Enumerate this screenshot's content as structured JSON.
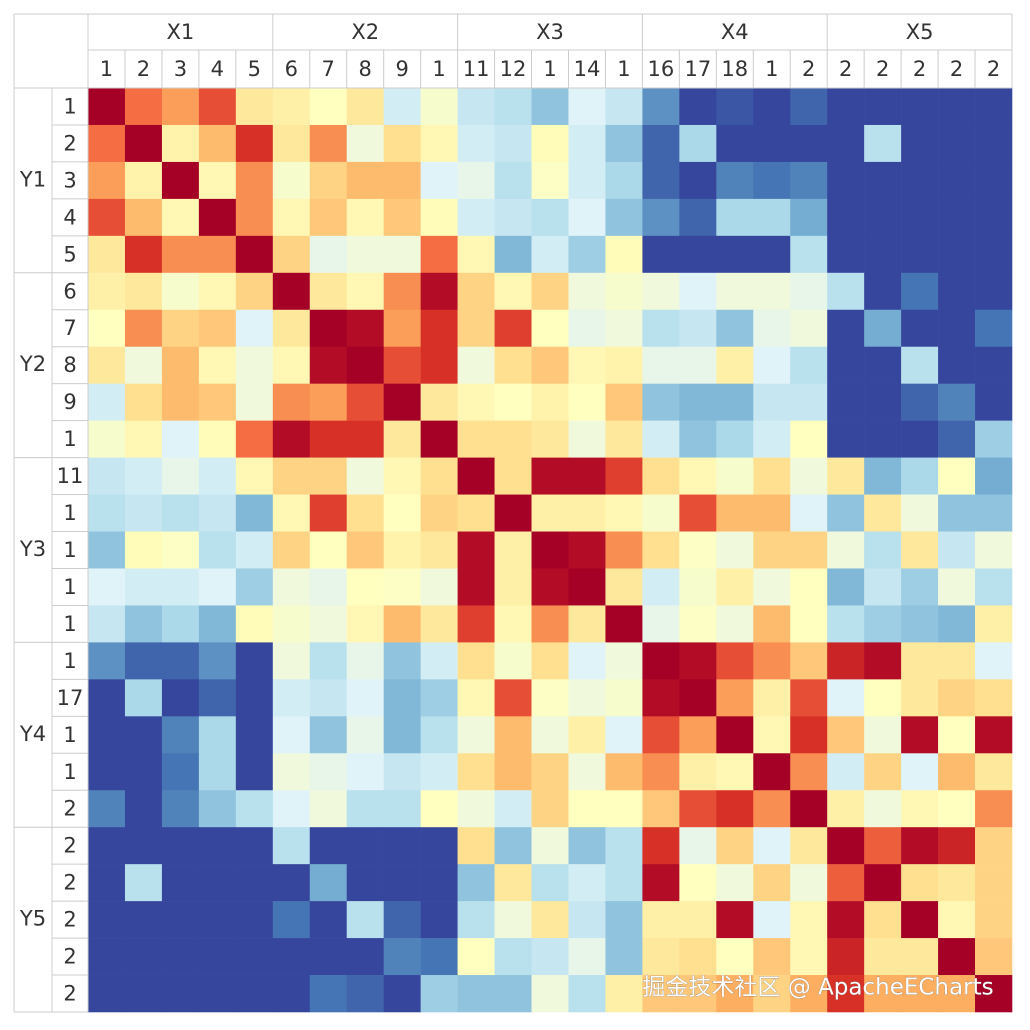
{
  "chart_data": {
    "type": "heatmap",
    "x_groups": [
      {
        "name": "X1",
        "labels": [
          "1",
          "2",
          "3",
          "4",
          "5"
        ]
      },
      {
        "name": "X2",
        "labels": [
          "6",
          "7",
          "8",
          "9",
          "1"
        ]
      },
      {
        "name": "X3",
        "labels": [
          "11",
          "12",
          "1",
          "14",
          "1"
        ]
      },
      {
        "name": "X4",
        "labels": [
          "16",
          "17",
          "18",
          "1",
          "2"
        ]
      },
      {
        "name": "X5",
        "labels": [
          "2",
          "2",
          "2",
          "2",
          "2"
        ]
      }
    ],
    "y_groups": [
      {
        "name": "Y1",
        "labels": [
          "1",
          "2",
          "3",
          "4",
          "5"
        ]
      },
      {
        "name": "Y2",
        "labels": [
          "6",
          "7",
          "8",
          "9",
          "1"
        ]
      },
      {
        "name": "Y3",
        "labels": [
          "11",
          "1",
          "1",
          "1",
          "1"
        ]
      },
      {
        "name": "Y4",
        "labels": [
          "1",
          "17",
          "1",
          "1",
          "2"
        ]
      },
      {
        "name": "Y5",
        "labels": [
          "2",
          "2",
          "2",
          "2",
          "2"
        ]
      }
    ],
    "zlim": [
      -1,
      1
    ],
    "colors": [
      "#313695",
      "#4575b4",
      "#74add1",
      "#abd9e9",
      "#e0f3f8",
      "#ffffbf",
      "#fee090",
      "#fdae61",
      "#f46d43",
      "#d73027",
      "#a50026"
    ],
    "values": [
      [
        1,
        0.6,
        0.45,
        0.7,
        0.15,
        0.1,
        0,
        0.15,
        -0.25,
        -0.05,
        -0.3,
        -0.35,
        -0.5,
        -0.2,
        -0.3,
        -0.7,
        -0.95,
        -0.9,
        -0.95,
        -0.85,
        -0.95,
        -0.95,
        -0.95,
        -0.95,
        -0.95
      ],
      [
        0.6,
        1,
        0.08,
        0.35,
        0.8,
        0.15,
        0.5,
        -0.1,
        0.2,
        0.05,
        -0.25,
        -0.3,
        0.02,
        -0.25,
        -0.5,
        -0.85,
        -0.4,
        -0.95,
        -0.95,
        -0.95,
        -0.95,
        -0.35,
        -0.95,
        -0.95,
        -0.95
      ],
      [
        0.45,
        0.08,
        1,
        0.05,
        0.5,
        -0.05,
        0.25,
        0.35,
        0.35,
        -0.2,
        -0.15,
        -0.35,
        -0.02,
        -0.25,
        -0.4,
        -0.85,
        -0.95,
        -0.75,
        -0.8,
        -0.75,
        -0.95,
        -0.95,
        -0.95,
        -0.95,
        -0.95
      ],
      [
        0.7,
        0.35,
        0.05,
        1,
        0.5,
        0.05,
        0.3,
        0.05,
        0.3,
        0.02,
        -0.25,
        -0.3,
        -0.35,
        -0.2,
        -0.5,
        -0.7,
        -0.85,
        -0.4,
        -0.4,
        -0.6,
        -0.95,
        -0.95,
        -0.95,
        -0.95,
        -0.95
      ],
      [
        0.15,
        0.8,
        0.5,
        0.5,
        1,
        0.25,
        -0.15,
        -0.1,
        -0.1,
        0.6,
        0.05,
        -0.55,
        -0.25,
        -0.45,
        0.02,
        -0.95,
        -0.95,
        -0.95,
        -0.95,
        -0.35,
        -0.95,
        -0.95,
        -0.95,
        -0.95,
        -0.95
      ],
      [
        0.1,
        0.15,
        -0.05,
        0.05,
        0.25,
        1,
        0.15,
        0.05,
        0.5,
        0.95,
        0.25,
        0.05,
        0.25,
        -0.1,
        -0.05,
        -0.1,
        -0.2,
        -0.1,
        -0.1,
        -0.15,
        -0.35,
        -0.95,
        -0.8,
        -0.95,
        -0.95
      ],
      [
        0,
        0.5,
        0.25,
        0.3,
        -0.2,
        0.15,
        1,
        0.95,
        0.45,
        0.8,
        0.25,
        0.75,
        0,
        -0.15,
        -0.1,
        -0.35,
        -0.3,
        -0.5,
        -0.15,
        -0.1,
        -0.95,
        -0.6,
        -0.95,
        -0.95,
        -0.8
      ],
      [
        0.15,
        -0.1,
        0.35,
        0.05,
        -0.1,
        0.05,
        0.95,
        1,
        0.7,
        0.8,
        -0.1,
        0.2,
        0.3,
        0.05,
        0.08,
        -0.15,
        -0.15,
        0.1,
        -0.2,
        -0.35,
        -0.95,
        -0.95,
        -0.35,
        -0.95,
        -0.95
      ],
      [
        -0.25,
        0.2,
        0.35,
        0.3,
        -0.1,
        0.5,
        0.45,
        0.7,
        1,
        0.15,
        0.05,
        0,
        0.08,
        0,
        0.3,
        -0.5,
        -0.55,
        -0.55,
        -0.3,
        -0.3,
        -0.95,
        -0.95,
        -0.85,
        -0.75,
        -0.95
      ],
      [
        -0.05,
        0.05,
        -0.2,
        0.02,
        0.6,
        0.95,
        0.8,
        0.8,
        0.15,
        1,
        0.2,
        0.2,
        0.15,
        -0.1,
        0.15,
        -0.25,
        -0.5,
        -0.4,
        -0.25,
        0,
        -0.95,
        -0.95,
        -0.95,
        -0.85,
        -0.45
      ],
      [
        -0.3,
        -0.25,
        -0.15,
        -0.25,
        0.05,
        0.25,
        0.25,
        -0.1,
        0.05,
        0.2,
        1,
        0.2,
        0.95,
        0.95,
        0.75,
        0.2,
        0.05,
        -0.05,
        0.2,
        -0.1,
        0.15,
        -0.55,
        -0.4,
        0,
        -0.6
      ],
      [
        -0.35,
        -0.3,
        -0.35,
        -0.3,
        -0.55,
        0.05,
        0.75,
        0.2,
        0,
        0.25,
        0.2,
        1,
        0.1,
        0.1,
        0.05,
        -0.05,
        0.7,
        0.35,
        0.35,
        -0.2,
        -0.5,
        0.15,
        -0.1,
        -0.5,
        -0.5
      ],
      [
        -0.5,
        0.02,
        -0.02,
        -0.35,
        -0.25,
        0.25,
        0,
        0.3,
        0.08,
        0.15,
        0.95,
        0.1,
        1,
        0.95,
        0.5,
        0.2,
        -0.02,
        -0.1,
        0.25,
        0.25,
        -0.1,
        -0.35,
        0.15,
        -0.3,
        -0.1
      ],
      [
        -0.2,
        -0.25,
        -0.25,
        -0.2,
        -0.45,
        -0.1,
        -0.15,
        0,
        -0.02,
        -0.1,
        0.95,
        0.1,
        0.95,
        1,
        0.15,
        -0.25,
        -0.05,
        0.1,
        -0.1,
        0,
        -0.55,
        -0.3,
        -0.45,
        -0.1,
        -0.35
      ],
      [
        -0.3,
        -0.5,
        -0.4,
        -0.55,
        0.02,
        -0.05,
        -0.1,
        0.05,
        0.35,
        0.15,
        0.75,
        0.05,
        0.5,
        0.15,
        1,
        -0.15,
        -0.02,
        -0.1,
        0.35,
        0,
        -0.35,
        -0.45,
        -0.5,
        -0.55,
        0.1
      ],
      [
        -0.7,
        -0.85,
        -0.85,
        -0.7,
        -0.95,
        -0.1,
        -0.35,
        -0.15,
        -0.5,
        -0.25,
        0.2,
        -0.05,
        0.2,
        -0.2,
        -0.1,
        1,
        0.95,
        0.7,
        0.5,
        0.3,
        0.85,
        0.95,
        0.15,
        0.15,
        -0.2
      ],
      [
        -0.95,
        -0.4,
        -0.95,
        -0.85,
        -0.95,
        -0.25,
        -0.3,
        -0.2,
        -0.55,
        -0.45,
        0.05,
        0.7,
        -0.02,
        -0.1,
        -0.05,
        0.95,
        1,
        0.45,
        0.1,
        0.7,
        -0.2,
        0,
        0.15,
        0.25,
        0.2
      ],
      [
        -0.95,
        -0.95,
        -0.75,
        -0.4,
        -0.95,
        -0.2,
        -0.5,
        -0.15,
        -0.55,
        -0.35,
        -0.1,
        0.35,
        -0.1,
        0.1,
        -0.2,
        0.7,
        0.45,
        1,
        0.05,
        0.8,
        0.3,
        -0.1,
        0.95,
        0,
        0.95
      ],
      [
        -0.95,
        -0.95,
        -0.8,
        -0.4,
        -0.95,
        -0.1,
        -0.15,
        -0.2,
        -0.3,
        -0.25,
        0.2,
        0.35,
        0.25,
        -0.1,
        0.35,
        0.5,
        0.1,
        0.05,
        1,
        0.5,
        -0.25,
        0.25,
        -0.2,
        0.35,
        0.15
      ],
      [
        -0.75,
        -0.95,
        -0.75,
        -0.5,
        -0.35,
        -0.2,
        -0.1,
        -0.35,
        -0.35,
        0,
        -0.1,
        -0.25,
        0.25,
        0,
        0,
        0.3,
        0.7,
        0.8,
        0.5,
        1,
        0.1,
        -0.1,
        0.05,
        0,
        0.5
      ],
      [
        -0.95,
        -0.95,
        -0.95,
        -0.95,
        -0.95,
        -0.35,
        -0.95,
        -0.95,
        -0.95,
        -0.95,
        0.2,
        -0.5,
        -0.1,
        -0.5,
        -0.35,
        0.8,
        -0.15,
        0.25,
        -0.2,
        0.15,
        1,
        0.65,
        0.95,
        0.85,
        0.25
      ],
      [
        -0.95,
        -0.35,
        -0.95,
        -0.95,
        -0.95,
        -0.95,
        -0.6,
        -0.95,
        -0.95,
        -0.95,
        -0.5,
        0.15,
        -0.35,
        -0.25,
        -0.35,
        0.95,
        0,
        -0.1,
        0.25,
        -0.1,
        0.65,
        1,
        0.2,
        0.15,
        0.25
      ],
      [
        -0.95,
        -0.95,
        -0.95,
        -0.95,
        -0.95,
        -0.8,
        -0.95,
        -0.35,
        -0.85,
        -0.95,
        -0.35,
        -0.1,
        0.15,
        -0.3,
        -0.5,
        0.1,
        0.1,
        0.95,
        -0.2,
        0.05,
        0.95,
        0.2,
        1,
        0.05,
        0.25
      ],
      [
        -0.95,
        -0.95,
        -0.95,
        -0.95,
        -0.95,
        -0.95,
        -0.95,
        -0.95,
        -0.75,
        -0.8,
        0,
        -0.35,
        -0.3,
        -0.15,
        -0.5,
        0.15,
        0.2,
        0,
        0.3,
        0.05,
        0.85,
        0.15,
        0.15,
        1,
        0.3
      ],
      [
        -0.95,
        -0.95,
        -0.95,
        -0.95,
        -0.95,
        -0.95,
        -0.8,
        -0.85,
        -0.95,
        -0.45,
        -0.5,
        -0.5,
        -0.1,
        -0.35,
        0.1,
        0.3,
        0.3,
        0.4,
        0.25,
        0.4,
        0.8,
        0.4,
        0.4,
        0.4,
        1
      ]
    ],
    "watermark": "掘金技术社区 @ ApacheECharts"
  }
}
